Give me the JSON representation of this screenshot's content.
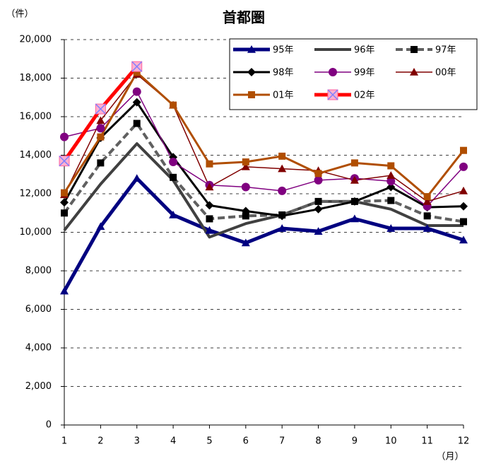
{
  "chart_data": {
    "type": "line",
    "title": "首都圏",
    "y_unit": "（件）",
    "x_unit": "（月）",
    "categories": [
      "1",
      "2",
      "3",
      "4",
      "5",
      "6",
      "7",
      "8",
      "9",
      "10",
      "11",
      "12"
    ],
    "ylim": [
      0,
      20000
    ],
    "yticks": [
      0,
      {
        "value": 2000,
        "label": "2,000"
      },
      {
        "value": 4000,
        "label": "4,000"
      },
      {
        "value": 6000,
        "label": "6,000"
      },
      {
        "value": 8000,
        "label": "8,000"
      },
      {
        "value": 10000,
        "label": "10,000"
      },
      {
        "value": 12000,
        "label": "12,000"
      },
      {
        "value": 14000,
        "label": "14,000"
      },
      {
        "value": 16000,
        "label": "16,000"
      },
      {
        "value": 18000,
        "label": "18,000"
      },
      {
        "value": 20000,
        "label": "20,000"
      }
    ],
    "grid": true,
    "legend": "upper right",
    "series": [
      {
        "name": "95年",
        "color": "#000080",
        "marker": "triangle",
        "width": 5,
        "dashed": false,
        "values": [
          6950,
          10300,
          12800,
          10900,
          10100,
          9450,
          10200,
          10050,
          10700,
          10200,
          10200,
          9600
        ]
      },
      {
        "name": "96年",
        "color": "#404040",
        "marker": "none",
        "width": 4,
        "dashed": false,
        "values": [
          10100,
          12500,
          14600,
          12700,
          9750,
          10450,
          10900,
          11600,
          11600,
          11200,
          10350,
          10350
        ]
      },
      {
        "name": "97年",
        "color": "#606060",
        "marker": "square",
        "width": 4,
        "dashed": true,
        "values": [
          11000,
          13600,
          15650,
          12850,
          10700,
          10850,
          10900,
          11600,
          11600,
          11650,
          10850,
          10550
        ]
      },
      {
        "name": "98年",
        "color": "#000000",
        "marker": "diamond",
        "width": 3,
        "dashed": false,
        "values": [
          11550,
          14900,
          16750,
          13900,
          11400,
          11100,
          10850,
          11200,
          11600,
          12350,
          11300,
          11350
        ]
      },
      {
        "name": "99年",
        "color": "#800080",
        "marker": "circle",
        "width": 1.5,
        "dashed": false,
        "values": [
          14950,
          15400,
          17300,
          13650,
          12450,
          12350,
          12150,
          12700,
          12800,
          12650,
          11350,
          13400
        ]
      },
      {
        "name": "00年",
        "color": "#800000",
        "marker": "triangle",
        "width": 1.5,
        "dashed": false,
        "values": [
          11950,
          15800,
          18200,
          16600,
          12350,
          13400,
          13300,
          13200,
          12700,
          12950,
          11600,
          12150
        ]
      },
      {
        "name": "01年",
        "color": "#b04e00",
        "marker": "square",
        "width": 3,
        "dashed": false,
        "values": [
          12050,
          14950,
          18300,
          16600,
          13550,
          13650,
          13950,
          13050,
          13600,
          13450,
          11850,
          14250
        ]
      },
      {
        "name": "02年",
        "color": "#ff0000",
        "marker": "xsquare",
        "width": 5,
        "dashed": false,
        "values": [
          13700,
          16400,
          18600,
          null,
          null,
          null,
          null,
          null,
          null,
          null,
          null,
          null
        ]
      }
    ]
  }
}
